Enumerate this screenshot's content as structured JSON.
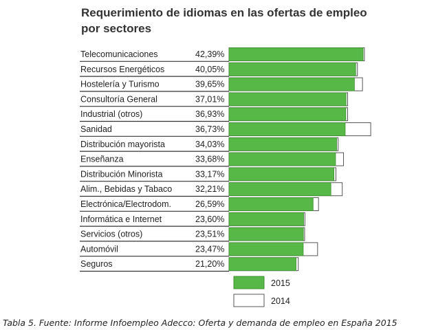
{
  "chart_data": {
    "type": "bar",
    "orientation": "horizontal",
    "title": "Requerimiento de idiomas en las ofertas de empleo por sectores",
    "title_lines": [
      "Requerimiento de idiomas en las ofertas de empleo",
      "por sectores"
    ],
    "categories": [
      "Telecomunicaciones",
      "Recursos Energéticos",
      "Hostelería y Turismo",
      "Consultoría General",
      "Industrial (otros)",
      "Sanidad",
      "Distribución mayorista",
      "Enseñanza",
      "Distribución Minorista",
      "Alim., Bebidas y Tabaco",
      "Electrónica/Electrodom.",
      "Informática e Internet",
      "Servicios (otros)",
      "Automóvil",
      "Seguros"
    ],
    "value_labels": [
      "42,39%",
      "40,05%",
      "39,65%",
      "37,01%",
      "36,93%",
      "36,73%",
      "34,03%",
      "33,68%",
      "33,17%",
      "32,21%",
      "26,59%",
      "23,60%",
      "23,51%",
      "23,47%",
      "21,20%"
    ],
    "series": [
      {
        "name": "2015",
        "color": "#58b847",
        "values": [
          42.39,
          40.05,
          39.65,
          37.01,
          36.93,
          36.73,
          34.03,
          33.68,
          33.17,
          32.21,
          26.59,
          23.6,
          23.51,
          23.47,
          21.2
        ]
      },
      {
        "name": "2014",
        "color": "#ffffff",
        "values": [
          42.8,
          40.6,
          42.2,
          37.5,
          37.5,
          44.8,
          34.5,
          36.2,
          33.8,
          35.8,
          28.3,
          24.0,
          23.9,
          28.0,
          21.9
        ]
      }
    ],
    "xlim": [
      0,
      50
    ],
    "grid": false,
    "legend_position": "bottom"
  },
  "caption": "Tabla 5. Fuente: Informe Infoempleo Adecco: Oferta y demanda de empleo en España 2015",
  "colors": {
    "bar_2015": "#58b847",
    "bar_2015_edge": "#3f8f32",
    "bar_2014_edge": "#555555",
    "row_line": "#333333"
  }
}
